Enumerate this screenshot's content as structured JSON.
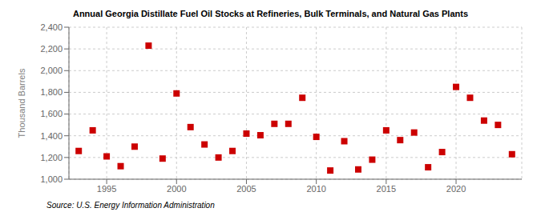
{
  "chart_data": {
    "type": "scatter",
    "title": "Annual Georgia Distillate Fuel Oil Stocks at Refineries, Bulk Terminals, and Natural Gas Plants",
    "ylabel": "Thousand Barrels",
    "annotations": [
      "Source: U.S. Energy Information Administration"
    ],
    "x": [
      1993,
      1994,
      1995,
      1996,
      1997,
      1998,
      1999,
      2000,
      2001,
      2002,
      2003,
      2004,
      2005,
      2006,
      2007,
      2008,
      2009,
      2010,
      2011,
      2012,
      2013,
      2014,
      2015,
      2016,
      2017,
      2018,
      2019,
      2020,
      2021,
      2022,
      2023,
      2024
    ],
    "values": [
      1260,
      1450,
      1210,
      1120,
      1300,
      2230,
      1190,
      1790,
      1480,
      1320,
      1200,
      1260,
      1420,
      1405,
      1510,
      1510,
      1750,
      1390,
      1080,
      1350,
      1090,
      1180,
      1450,
      1360,
      1430,
      1110,
      1250,
      1850,
      1750,
      1540,
      1500,
      1230
    ],
    "color": "#cc0000",
    "marker": "square",
    "xlim": [
      1992.3,
      2024.7
    ],
    "xticks": [
      1995,
      2000,
      2005,
      2010,
      2015,
      2020
    ],
    "ylim": [
      1000,
      2400
    ],
    "yticks": [
      {
        "value": 1000,
        "label": "1,000"
      },
      {
        "value": 1200,
        "label": "1,200"
      },
      {
        "value": 1400,
        "label": "1,400"
      },
      {
        "value": 1600,
        "label": "1,600"
      },
      {
        "value": 1800,
        "label": "1,800"
      },
      {
        "value": 2000,
        "label": "2,000"
      },
      {
        "value": 2200,
        "label": "2,200"
      },
      {
        "value": 2400,
        "label": "2,400"
      }
    ],
    "grid": true
  }
}
